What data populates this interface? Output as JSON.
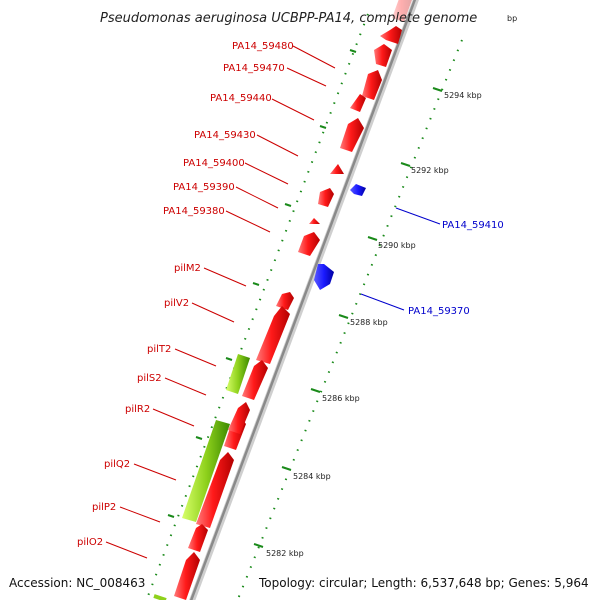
{
  "title": "Pseudomonas aeruginosa UCBPP-PA14, complete genome",
  "title_suffix": "bp",
  "accession": "Accession: NC_008463",
  "summary": "Topology: circular; Length: 6,537,648 bp; Genes: 5,964",
  "colors": {
    "forward": "#ff1a1a",
    "reverse": "#1a1aff",
    "rna": "#8fd11c",
    "backbone": "#9a9a9a",
    "tick": "#1a8a1a",
    "label_forward": "#cc0000",
    "label_reverse": "#0000cc"
  },
  "scale": {
    "unit": "kbp",
    "ticks": [
      {
        "pos": 5282,
        "label": "5282 kbp"
      },
      {
        "pos": 5284,
        "label": "5284 kbp"
      },
      {
        "pos": 5286,
        "label": "5286 kbp"
      },
      {
        "pos": 5288,
        "label": "5288 kbp"
      },
      {
        "pos": 5290,
        "label": "5290 kbp"
      },
      {
        "pos": 5292,
        "label": "5292 kbp"
      },
      {
        "pos": 5294,
        "label": "5294 kbp"
      }
    ]
  },
  "genes": [
    {
      "label": "PA14_59480",
      "strand": "forward"
    },
    {
      "label": "PA14_59470",
      "strand": "forward"
    },
    {
      "label": "PA14_59440",
      "strand": "forward"
    },
    {
      "label": "PA14_59430",
      "strand": "forward"
    },
    {
      "label": "PA14_59400",
      "strand": "forward"
    },
    {
      "label": "PA14_59390",
      "strand": "forward"
    },
    {
      "label": "PA14_59380",
      "strand": "forward"
    },
    {
      "label": "PA14_59410",
      "strand": "reverse"
    },
    {
      "label": "pilM2",
      "strand": "forward"
    },
    {
      "label": "PA14_59370",
      "strand": "reverse"
    },
    {
      "label": "pilV2",
      "strand": "forward"
    },
    {
      "label": "pilT2",
      "strand": "forward"
    },
    {
      "label": "pilS2",
      "strand": "forward"
    },
    {
      "label": "pilR2",
      "strand": "forward"
    },
    {
      "label": "pilQ2",
      "strand": "forward"
    },
    {
      "label": "pilP2",
      "strand": "forward"
    },
    {
      "label": "pilO2",
      "strand": "forward"
    }
  ]
}
